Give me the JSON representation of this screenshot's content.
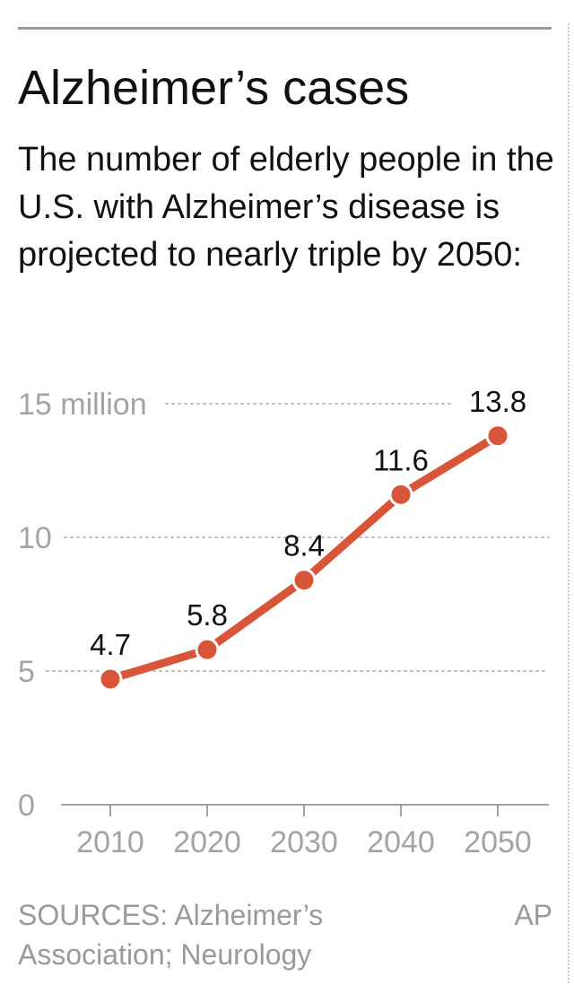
{
  "header": {
    "title": "Alzheimer’s cases",
    "subtitle": "The number of elderly people in the U.S. with Alzheimer’s disease is projected to nearly triple by 2050:"
  },
  "chart_data": {
    "type": "line",
    "categories": [
      "2010",
      "2020",
      "2030",
      "2040",
      "2050"
    ],
    "x": [
      2010,
      2020,
      2030,
      2040,
      2050
    ],
    "values": [
      4.7,
      5.8,
      8.4,
      11.6,
      13.8
    ],
    "data_labels": [
      "4.7",
      "5.8",
      "8.4",
      "11.6",
      "13.8"
    ],
    "y_ticks": [
      {
        "value": 0,
        "label": "0"
      },
      {
        "value": 5,
        "label": "5"
      },
      {
        "value": 10,
        "label": "10"
      },
      {
        "value": 15,
        "label": "15 million"
      }
    ],
    "ylim": [
      0,
      15
    ],
    "grid": true,
    "line_color": "#d9553a",
    "grid_color": "#bdbdbd",
    "axis_color": "#a3a3a3"
  },
  "footer": {
    "source": "SOURCES: Alzheimer’s Association; Neurology",
    "credit": "AP"
  }
}
